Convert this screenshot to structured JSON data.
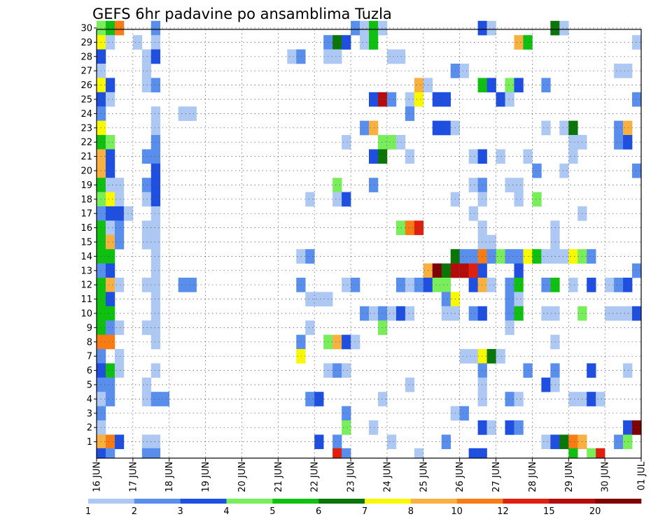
{
  "chart_data": {
    "type": "heatmap",
    "title": "GEFS 6hr padavine po ansamblima Tuzla",
    "xlabel": "",
    "ylabel": "",
    "x_tick_labels": [
      "16 JUN",
      "17 JUN",
      "18 JUN",
      "19 JUN",
      "20 JUN",
      "21 JUN",
      "22 JUN",
      "23 JUN",
      "24 JUN",
      "25 JUN",
      "26 JUN",
      "27 JUN",
      "28 JUN",
      "29 JUN",
      "30 JUN",
      "01 JUL"
    ],
    "y_tick_labels": [
      "1",
      "2",
      "3",
      "4",
      "5",
      "6",
      "7",
      "8",
      "9",
      "10",
      "11",
      "12",
      "13",
      "14",
      "15",
      "16",
      "17",
      "18",
      "19",
      "20",
      "21",
      "22",
      "23",
      "24",
      "25",
      "26",
      "27",
      "28",
      "29",
      "30"
    ],
    "y_range": [
      0,
      30
    ],
    "time_steps_per_day": 4,
    "n_time_steps": 60,
    "grid": true,
    "legend_position": "bottom",
    "legend": {
      "levels": [
        1,
        2,
        3,
        4,
        5,
        6,
        7,
        8,
        10,
        12,
        15,
        20
      ],
      "level_labels": [
        "1",
        "2",
        "3",
        "4",
        "5",
        "6",
        "7",
        "8",
        "10",
        "12",
        "15",
        "20"
      ],
      "colors": [
        "#aec8f4",
        "#5a8eec",
        "#1f4fe0",
        "#78ee5a",
        "#10c010",
        "#0a760a",
        "#f8f800",
        "#f8b040",
        "#f87c14",
        "#e0200e",
        "#b40c0c",
        "#800000"
      ]
    },
    "cells": [
      [
        30,
        0,
        4
      ],
      [
        30,
        1,
        5
      ],
      [
        30,
        2,
        9
      ],
      [
        30,
        6,
        2
      ],
      [
        30,
        28,
        2
      ],
      [
        30,
        29,
        1
      ],
      [
        30,
        30,
        5
      ],
      [
        30,
        31,
        1
      ],
      [
        30,
        42,
        3
      ],
      [
        30,
        43,
        1
      ],
      [
        30,
        50,
        6
      ],
      [
        30,
        51,
        1
      ],
      [
        29,
        0,
        7
      ],
      [
        29,
        1,
        1
      ],
      [
        29,
        4,
        1
      ],
      [
        29,
        6,
        1
      ],
      [
        29,
        25,
        2
      ],
      [
        29,
        26,
        6
      ],
      [
        29,
        27,
        3
      ],
      [
        29,
        29,
        1
      ],
      [
        29,
        30,
        5
      ],
      [
        29,
        46,
        8
      ],
      [
        29,
        47,
        5
      ],
      [
        29,
        59,
        1
      ],
      [
        28,
        0,
        3
      ],
      [
        28,
        5,
        1
      ],
      [
        28,
        6,
        3
      ],
      [
        28,
        21,
        1
      ],
      [
        28,
        22,
        2
      ],
      [
        28,
        25,
        1
      ],
      [
        28,
        26,
        1
      ],
      [
        28,
        32,
        1
      ],
      [
        28,
        33,
        1
      ],
      [
        27,
        0,
        1
      ],
      [
        27,
        5,
        1
      ],
      [
        27,
        39,
        2
      ],
      [
        27,
        40,
        1
      ],
      [
        27,
        57,
        1
      ],
      [
        27,
        58,
        1
      ],
      [
        26,
        0,
        7
      ],
      [
        26,
        1,
        3
      ],
      [
        26,
        5,
        1
      ],
      [
        26,
        6,
        2
      ],
      [
        26,
        35,
        8
      ],
      [
        26,
        36,
        1
      ],
      [
        26,
        42,
        5
      ],
      [
        26,
        43,
        3
      ],
      [
        26,
        45,
        4
      ],
      [
        26,
        46,
        3
      ],
      [
        26,
        49,
        2
      ],
      [
        25,
        0,
        3
      ],
      [
        25,
        1,
        1
      ],
      [
        25,
        30,
        3
      ],
      [
        25,
        31,
        11
      ],
      [
        25,
        32,
        2
      ],
      [
        25,
        34,
        1
      ],
      [
        25,
        35,
        7
      ],
      [
        25,
        37,
        3
      ],
      [
        25,
        38,
        3
      ],
      [
        25,
        44,
        3
      ],
      [
        25,
        45,
        1
      ],
      [
        25,
        59,
        2
      ],
      [
        24,
        0,
        2
      ],
      [
        24,
        6,
        1
      ],
      [
        24,
        9,
        1
      ],
      [
        24,
        10,
        1
      ],
      [
        24,
        34,
        2
      ],
      [
        23,
        0,
        7
      ],
      [
        23,
        6,
        1
      ],
      [
        23,
        29,
        2
      ],
      [
        23,
        30,
        8
      ],
      [
        23,
        37,
        3
      ],
      [
        23,
        38,
        3
      ],
      [
        23,
        39,
        1
      ],
      [
        23,
        49,
        1
      ],
      [
        23,
        51,
        1
      ],
      [
        23,
        52,
        6
      ],
      [
        23,
        57,
        2
      ],
      [
        23,
        58,
        8
      ],
      [
        22,
        0,
        5
      ],
      [
        22,
        1,
        4
      ],
      [
        22,
        6,
        2
      ],
      [
        22,
        27,
        1
      ],
      [
        22,
        31,
        4
      ],
      [
        22,
        32,
        4
      ],
      [
        22,
        33,
        1
      ],
      [
        22,
        52,
        1
      ],
      [
        22,
        53,
        1
      ],
      [
        22,
        57,
        2
      ],
      [
        22,
        58,
        3
      ],
      [
        21,
        0,
        8
      ],
      [
        21,
        1,
        3
      ],
      [
        21,
        5,
        2
      ],
      [
        21,
        6,
        2
      ],
      [
        21,
        30,
        3
      ],
      [
        21,
        31,
        6
      ],
      [
        21,
        34,
        1
      ],
      [
        21,
        41,
        1
      ],
      [
        21,
        42,
        3
      ],
      [
        21,
        44,
        1
      ],
      [
        21,
        47,
        1
      ],
      [
        21,
        52,
        1
      ],
      [
        20,
        0,
        8
      ],
      [
        20,
        1,
        3
      ],
      [
        20,
        6,
        3
      ],
      [
        20,
        48,
        2
      ],
      [
        20,
        51,
        1
      ],
      [
        20,
        59,
        2
      ],
      [
        19,
        0,
        5
      ],
      [
        19,
        1,
        1
      ],
      [
        19,
        2,
        1
      ],
      [
        19,
        5,
        2
      ],
      [
        19,
        6,
        3
      ],
      [
        19,
        26,
        4
      ],
      [
        19,
        30,
        2
      ],
      [
        19,
        41,
        1
      ],
      [
        19,
        42,
        2
      ],
      [
        19,
        45,
        1
      ],
      [
        19,
        46,
        1
      ],
      [
        18,
        0,
        4
      ],
      [
        18,
        1,
        7
      ],
      [
        18,
        2,
        1
      ],
      [
        18,
        5,
        1
      ],
      [
        18,
        6,
        3
      ],
      [
        18,
        23,
        1
      ],
      [
        18,
        26,
        1
      ],
      [
        18,
        27,
        3
      ],
      [
        18,
        39,
        1
      ],
      [
        18,
        42,
        1
      ],
      [
        18,
        46,
        1
      ],
      [
        18,
        48,
        4
      ],
      [
        17,
        0,
        2
      ],
      [
        17,
        1,
        3
      ],
      [
        17,
        2,
        3
      ],
      [
        17,
        3,
        1
      ],
      [
        17,
        6,
        1
      ],
      [
        17,
        41,
        1
      ],
      [
        17,
        53,
        1
      ],
      [
        16,
        0,
        5
      ],
      [
        16,
        1,
        1
      ],
      [
        16,
        2,
        2
      ],
      [
        16,
        5,
        1
      ],
      [
        16,
        6,
        1
      ],
      [
        16,
        33,
        4
      ],
      [
        16,
        34,
        9
      ],
      [
        16,
        35,
        10
      ],
      [
        16,
        42,
        1
      ],
      [
        16,
        50,
        1
      ],
      [
        15,
        0,
        5
      ],
      [
        15,
        1,
        8
      ],
      [
        15,
        2,
        2
      ],
      [
        15,
        5,
        1
      ],
      [
        15,
        6,
        1
      ],
      [
        15,
        42,
        1
      ],
      [
        15,
        43,
        1
      ],
      [
        15,
        50,
        1
      ],
      [
        14,
        0,
        5
      ],
      [
        14,
        1,
        5
      ],
      [
        14,
        6,
        1
      ],
      [
        14,
        22,
        1
      ],
      [
        14,
        23,
        2
      ],
      [
        14,
        39,
        6
      ],
      [
        14,
        40,
        2
      ],
      [
        14,
        41,
        2
      ],
      [
        14,
        42,
        9
      ],
      [
        14,
        43,
        2
      ],
      [
        14,
        44,
        4
      ],
      [
        14,
        45,
        2
      ],
      [
        14,
        46,
        2
      ],
      [
        14,
        47,
        7
      ],
      [
        14,
        48,
        5
      ],
      [
        14,
        49,
        1
      ],
      [
        14,
        50,
        1
      ],
      [
        14,
        51,
        1
      ],
      [
        14,
        52,
        7
      ],
      [
        14,
        53,
        4
      ],
      [
        14,
        54,
        2
      ],
      [
        13,
        0,
        2
      ],
      [
        13,
        1,
        3
      ],
      [
        13,
        6,
        1
      ],
      [
        13,
        36,
        8
      ],
      [
        13,
        37,
        12
      ],
      [
        13,
        38,
        6
      ],
      [
        13,
        39,
        11
      ],
      [
        13,
        40,
        11
      ],
      [
        13,
        41,
        10
      ],
      [
        13,
        42,
        3
      ],
      [
        13,
        46,
        3
      ],
      [
        13,
        59,
        2
      ],
      [
        12,
        0,
        5
      ],
      [
        12,
        1,
        8
      ],
      [
        12,
        2,
        1
      ],
      [
        12,
        5,
        1
      ],
      [
        12,
        6,
        1
      ],
      [
        12,
        9,
        2
      ],
      [
        12,
        10,
        2
      ],
      [
        12,
        22,
        2
      ],
      [
        12,
        27,
        1
      ],
      [
        12,
        28,
        2
      ],
      [
        12,
        33,
        2
      ],
      [
        12,
        34,
        1
      ],
      [
        12,
        35,
        2
      ],
      [
        12,
        36,
        3
      ],
      [
        12,
        37,
        4
      ],
      [
        12,
        38,
        4
      ],
      [
        12,
        41,
        3
      ],
      [
        12,
        42,
        8
      ],
      [
        12,
        43,
        1
      ],
      [
        12,
        45,
        2
      ],
      [
        12,
        46,
        5
      ],
      [
        12,
        49,
        2
      ],
      [
        12,
        50,
        5
      ],
      [
        12,
        52,
        1
      ],
      [
        12,
        54,
        3
      ],
      [
        12,
        56,
        1
      ],
      [
        12,
        57,
        2
      ],
      [
        12,
        58,
        3
      ],
      [
        11,
        0,
        5
      ],
      [
        11,
        1,
        3
      ],
      [
        11,
        6,
        1
      ],
      [
        11,
        23,
        1
      ],
      [
        11,
        24,
        1
      ],
      [
        11,
        25,
        1
      ],
      [
        11,
        38,
        2
      ],
      [
        11,
        39,
        7
      ],
      [
        11,
        45,
        2
      ],
      [
        11,
        46,
        1
      ],
      [
        10,
        0,
        5
      ],
      [
        10,
        1,
        5
      ],
      [
        10,
        6,
        1
      ],
      [
        10,
        29,
        2
      ],
      [
        10,
        30,
        1
      ],
      [
        10,
        31,
        2
      ],
      [
        10,
        32,
        1
      ],
      [
        10,
        33,
        3
      ],
      [
        10,
        34,
        1
      ],
      [
        10,
        38,
        1
      ],
      [
        10,
        39,
        1
      ],
      [
        10,
        41,
        2
      ],
      [
        10,
        42,
        3
      ],
      [
        10,
        45,
        2
      ],
      [
        10,
        46,
        5
      ],
      [
        10,
        49,
        1
      ],
      [
        10,
        50,
        1
      ],
      [
        10,
        53,
        4
      ],
      [
        10,
        56,
        1
      ],
      [
        10,
        57,
        1
      ],
      [
        10,
        58,
        1
      ],
      [
        10,
        59,
        3
      ],
      [
        9,
        0,
        5
      ],
      [
        9,
        1,
        2
      ],
      [
        9,
        2,
        1
      ],
      [
        9,
        5,
        1
      ],
      [
        9,
        6,
        1
      ],
      [
        9,
        23,
        1
      ],
      [
        9,
        31,
        4
      ],
      [
        9,
        45,
        1
      ],
      [
        8,
        0,
        9
      ],
      [
        8,
        1,
        9
      ],
      [
        8,
        6,
        1
      ],
      [
        8,
        22,
        2
      ],
      [
        8,
        25,
        4
      ],
      [
        8,
        26,
        8
      ],
      [
        8,
        27,
        3
      ],
      [
        8,
        28,
        1
      ],
      [
        8,
        50,
        1
      ],
      [
        7,
        0,
        2
      ],
      [
        7,
        2,
        1
      ],
      [
        7,
        22,
        7
      ],
      [
        7,
        40,
        1
      ],
      [
        7,
        41,
        1
      ],
      [
        7,
        42,
        7
      ],
      [
        7,
        43,
        6
      ],
      [
        7,
        44,
        1
      ],
      [
        6,
        0,
        3
      ],
      [
        6,
        1,
        5
      ],
      [
        6,
        2,
        1
      ],
      [
        6,
        6,
        1
      ],
      [
        6,
        25,
        1
      ],
      [
        6,
        26,
        2
      ],
      [
        6,
        27,
        1
      ],
      [
        6,
        42,
        2
      ],
      [
        6,
        47,
        2
      ],
      [
        6,
        50,
        2
      ],
      [
        6,
        54,
        3
      ],
      [
        6,
        58,
        1
      ],
      [
        5,
        0,
        2
      ],
      [
        5,
        1,
        2
      ],
      [
        5,
        5,
        1
      ],
      [
        5,
        34,
        1
      ],
      [
        5,
        42,
        1
      ],
      [
        5,
        49,
        3
      ],
      [
        5,
        50,
        1
      ],
      [
        4,
        0,
        1
      ],
      [
        4,
        1,
        2
      ],
      [
        4,
        5,
        1
      ],
      [
        4,
        6,
        2
      ],
      [
        4,
        7,
        2
      ],
      [
        4,
        23,
        2
      ],
      [
        4,
        24,
        3
      ],
      [
        4,
        31,
        1
      ],
      [
        4,
        42,
        1
      ],
      [
        4,
        45,
        2
      ],
      [
        4,
        46,
        1
      ],
      [
        4,
        52,
        1
      ],
      [
        4,
        53,
        1
      ],
      [
        4,
        54,
        3
      ],
      [
        4,
        55,
        1
      ],
      [
        3,
        0,
        2
      ],
      [
        3,
        27,
        2
      ],
      [
        3,
        39,
        1
      ],
      [
        3,
        40,
        2
      ],
      [
        2,
        0,
        1
      ],
      [
        2,
        27,
        4
      ],
      [
        2,
        30,
        1
      ],
      [
        2,
        42,
        3
      ],
      [
        2,
        43,
        1
      ],
      [
        2,
        45,
        3
      ],
      [
        2,
        46,
        2
      ],
      [
        2,
        58,
        3
      ],
      [
        2,
        59,
        12
      ],
      [
        1,
        0,
        8
      ],
      [
        1,
        1,
        9
      ],
      [
        1,
        2,
        3
      ],
      [
        1,
        5,
        1
      ],
      [
        1,
        6,
        1
      ],
      [
        1,
        24,
        3
      ],
      [
        1,
        26,
        2
      ],
      [
        1,
        32,
        1
      ],
      [
        1,
        38,
        2
      ],
      [
        1,
        49,
        1
      ],
      [
        1,
        50,
        3
      ],
      [
        1,
        51,
        6
      ],
      [
        1,
        52,
        9
      ],
      [
        1,
        53,
        8
      ],
      [
        1,
        57,
        2
      ],
      [
        1,
        58,
        4
      ]
    ],
    "bottom_cells": [
      [
        0,
        3
      ],
      [
        1,
        2
      ],
      [
        5,
        2
      ],
      [
        6,
        2
      ],
      [
        26,
        10
      ],
      [
        27,
        2
      ],
      [
        35,
        1
      ],
      [
        41,
        3
      ],
      [
        42,
        3
      ],
      [
        52,
        5
      ],
      [
        54,
        4
      ],
      [
        55,
        10
      ]
    ]
  }
}
